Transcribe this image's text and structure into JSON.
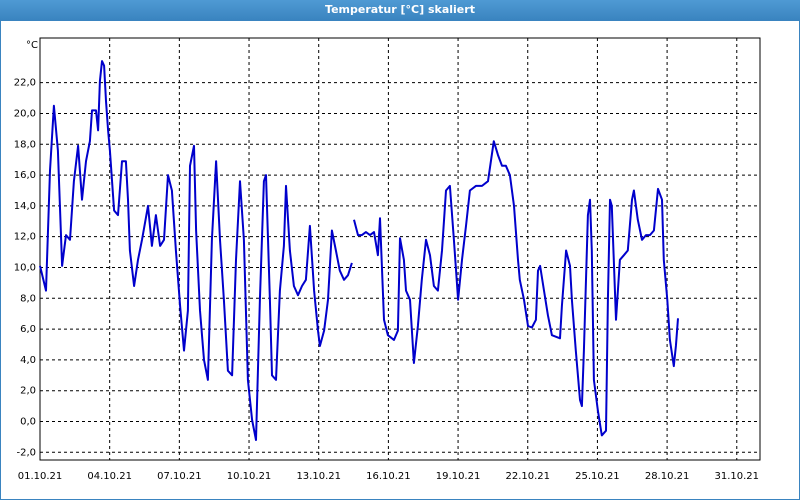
{
  "chart_data": {
    "type": "line",
    "title": "Temperatur [°C] skaliert",
    "y_label": "°C",
    "x": [
      1.0,
      1.26,
      1.43,
      1.6,
      1.77,
      1.95,
      2.12,
      2.29,
      2.46,
      2.64,
      2.81,
      2.98,
      3.15,
      3.24,
      3.41,
      3.5,
      3.58,
      3.67,
      3.76,
      3.84,
      3.93,
      4.01,
      4.19,
      4.36,
      4.53,
      4.7,
      4.79,
      4.87,
      5.05,
      5.22,
      5.39,
      5.65,
      5.82,
      5.99,
      6.17,
      6.34,
      6.51,
      6.68,
      6.85,
      7.03,
      7.2,
      7.37,
      7.46,
      7.63,
      7.72,
      7.89,
      8.06,
      8.23,
      8.4,
      8.58,
      8.75,
      8.92,
      9.09,
      9.27,
      9.44,
      9.61,
      9.78,
      9.95,
      10.13,
      10.3,
      10.47,
      10.64,
      10.73,
      10.9,
      10.99,
      11.16,
      11.33,
      11.5,
      11.59,
      11.76,
      11.93,
      12.11,
      12.28,
      12.45,
      12.62,
      12.8,
      12.97,
      13.05,
      13.23,
      13.4,
      13.57,
      13.74,
      13.91,
      14.09,
      14.26,
      14.43,
      null,
      14.52,
      14.69,
      14.86,
      15.03,
      15.21,
      15.38,
      15.55,
      15.64,
      15.81,
      15.98,
      16.24,
      16.41,
      16.5,
      16.67,
      16.76,
      16.93,
      17.1,
      17.27,
      17.44,
      17.62,
      17.79,
      17.96,
      18.13,
      18.31,
      18.48,
      18.65,
      18.82,
      19.0,
      19.17,
      19.34,
      19.51,
      19.77,
      20.03,
      20.29,
      20.54,
      20.72,
      20.89,
      21.06,
      21.23,
      21.41,
      21.58,
      21.66,
      21.84,
      22.01,
      22.18,
      22.35,
      22.44,
      22.53,
      22.7,
      22.87,
      23.04,
      23.39,
      23.47,
      23.65,
      23.82,
      23.9,
      24.07,
      24.25,
      24.33,
      24.42,
      24.59,
      24.68,
      24.76,
      24.85,
      25.02,
      25.19,
      25.37,
      25.45,
      25.54,
      25.62,
      25.8,
      25.97,
      26.14,
      26.31,
      26.49,
      26.57,
      26.74,
      26.92,
      27.09,
      27.26,
      27.43,
      27.61,
      27.78,
      27.86,
      28.01,
      28.12,
      28.29,
      28.38,
      28.47
    ],
    "series": [
      {
        "name": "Temperatur",
        "color": "#0000cc",
        "values": [
          10.1,
          8.5,
          16.3,
          20.5,
          17.6,
          10.1,
          12.1,
          11.8,
          15.6,
          17.9,
          14.4,
          16.9,
          18.2,
          20.2,
          20.2,
          18.9,
          22.1,
          23.4,
          23.1,
          20.8,
          18.9,
          17.6,
          13.7,
          13.4,
          16.9,
          16.9,
          14.4,
          11.1,
          8.8,
          10.5,
          11.8,
          14.0,
          11.4,
          13.4,
          11.4,
          11.8,
          16.0,
          15.0,
          11.1,
          7.5,
          4.6,
          7.2,
          16.6,
          17.9,
          12.4,
          7.2,
          4.0,
          2.7,
          11.8,
          16.9,
          11.8,
          7.9,
          3.3,
          3.0,
          10.5,
          15.6,
          11.8,
          2.7,
          0.1,
          -1.2,
          7.9,
          15.6,
          16.0,
          7.9,
          3.0,
          2.7,
          8.5,
          11.4,
          15.3,
          11.1,
          8.8,
          8.2,
          8.8,
          9.2,
          12.7,
          8.5,
          5.9,
          4.9,
          5.9,
          7.9,
          12.4,
          11.1,
          9.8,
          9.2,
          9.5,
          10.3,
          null,
          13.1,
          12.1,
          12.1,
          12.3,
          12.1,
          12.3,
          10.8,
          13.2,
          6.6,
          5.6,
          5.3,
          5.9,
          11.9,
          10.5,
          8.5,
          7.9,
          3.8,
          6.2,
          9.2,
          11.8,
          10.8,
          8.8,
          8.5,
          11.1,
          15.0,
          15.3,
          11.8,
          7.9,
          10.5,
          12.7,
          15.0,
          15.3,
          15.3,
          15.6,
          18.2,
          17.3,
          16.6,
          16.6,
          16.0,
          14.0,
          10.5,
          9.2,
          7.9,
          6.2,
          6.1,
          6.6,
          9.8,
          10.1,
          8.5,
          6.9,
          5.6,
          5.4,
          7.5,
          11.1,
          10.1,
          7.9,
          4.6,
          1.4,
          1.0,
          4.6,
          13.4,
          14.4,
          11.1,
          2.7,
          0.7,
          -0.9,
          -0.6,
          7.9,
          14.4,
          14.0,
          6.6,
          10.5,
          10.8,
          11.1,
          14.4,
          15.0,
          13.1,
          11.8,
          12.1,
          12.1,
          12.4,
          15.1,
          14.4,
          10.5,
          7.9,
          5.3,
          3.6,
          4.9,
          6.7
        ]
      }
    ],
    "xlim": [
      1,
      32
    ],
    "xticks": [
      {
        "value": 1,
        "label": "01.10.21"
      },
      {
        "value": 4,
        "label": "04.10.21"
      },
      {
        "value": 7,
        "label": "07.10.21"
      },
      {
        "value": 10,
        "label": "10.10.21"
      },
      {
        "value": 13,
        "label": "13.10.21"
      },
      {
        "value": 16,
        "label": "16.10.21"
      },
      {
        "value": 19,
        "label": "19.10.21"
      },
      {
        "value": 22,
        "label": "22.10.21"
      },
      {
        "value": 25,
        "label": "25.10.21"
      },
      {
        "value": 28,
        "label": "28.10.21"
      },
      {
        "value": 31,
        "label": "31.10.21"
      }
    ],
    "ylim": [
      -2.5,
      24.9
    ],
    "yticks": [
      {
        "value": -2,
        "label": "-2,0"
      },
      {
        "value": 0,
        "label": "0,0"
      },
      {
        "value": 2,
        "label": "2,0"
      },
      {
        "value": 4,
        "label": "4,0"
      },
      {
        "value": 6,
        "label": "6,0"
      },
      {
        "value": 8,
        "label": "8,0"
      },
      {
        "value": 10,
        "label": "10,0"
      },
      {
        "value": 12,
        "label": "12,0"
      },
      {
        "value": 14,
        "label": "14,0"
      },
      {
        "value": 16,
        "label": "16,0"
      },
      {
        "value": 18,
        "label": "18,0"
      },
      {
        "value": 20,
        "label": "20,0"
      },
      {
        "value": 22,
        "label": "22,0"
      }
    ],
    "grid": true
  }
}
